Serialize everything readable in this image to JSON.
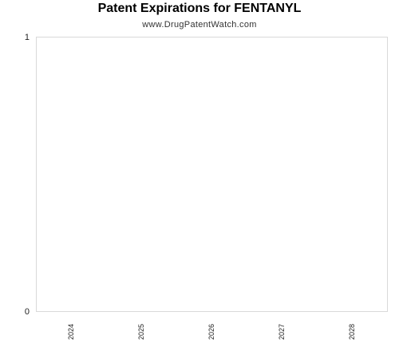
{
  "chart_data": {
    "type": "bar",
    "title": "Patent Expirations for FENTANYL",
    "subtitle": "www.DrugPatentWatch.com",
    "xlabel": "",
    "ylabel": "",
    "categories": [
      "2024",
      "2025",
      "2026",
      "2027",
      "2028"
    ],
    "series": [
      {
        "values": [
          0,
          0,
          0,
          0,
          0
        ]
      }
    ],
    "ylim": [
      0,
      1
    ],
    "yticks": [
      "0",
      "1"
    ],
    "grid": false,
    "legend": "none",
    "colors": {
      "frame": "#d9d9d9",
      "text": "#222222"
    }
  }
}
